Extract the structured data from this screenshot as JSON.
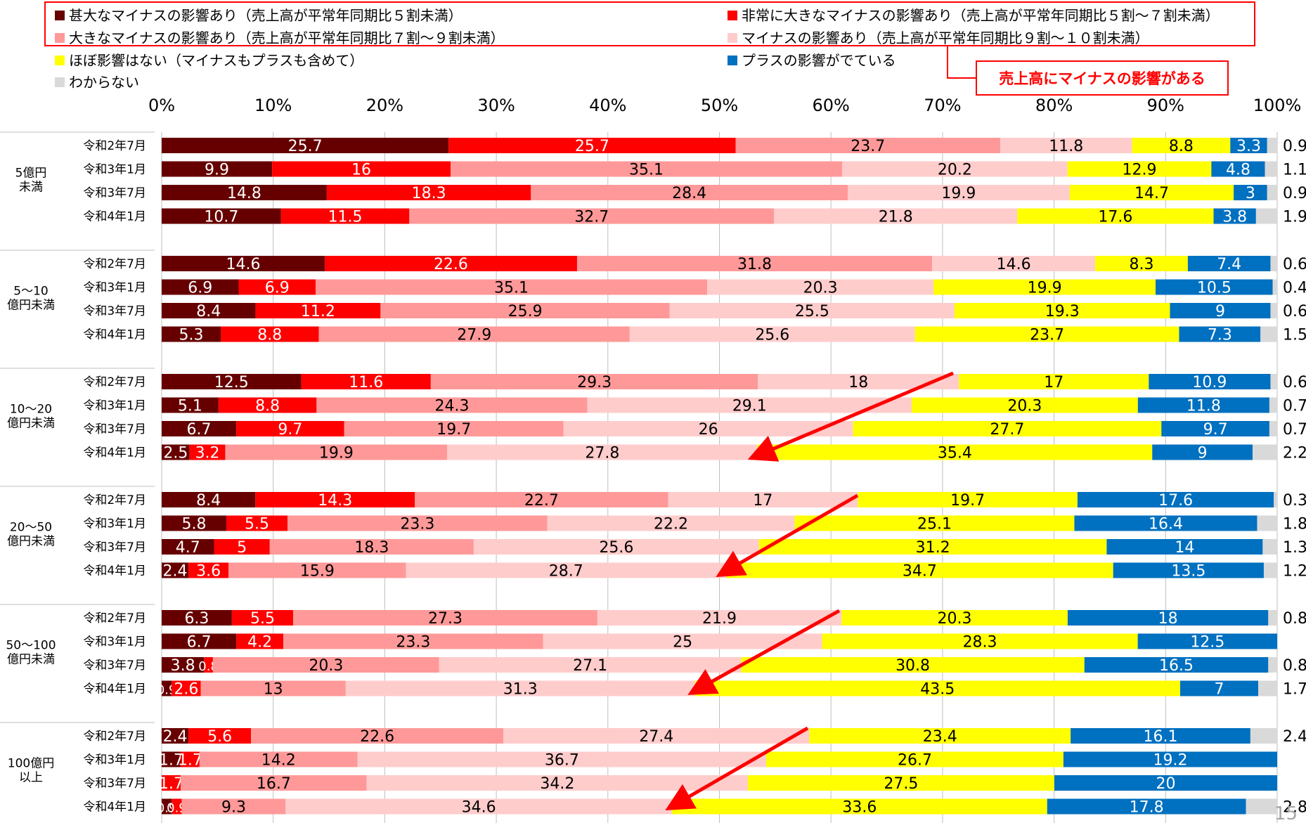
{
  "legend": {
    "items": [
      {
        "label": "甚大なマイナスの影響あり（売上高が平常年同期比５割未満）",
        "color": "#660000"
      },
      {
        "label": "非常に大きなマイナスの影響あり（売上高が平常年同期比５割〜７割未満）",
        "color": "#FF0000"
      },
      {
        "label": "大きなマイナスの影響あり（売上高が平常年同期比７割〜９割未満）",
        "color": "#FF9999"
      },
      {
        "label": "マイナスの影響あり（売上高が平常年同期比９割〜１０割未満）",
        "color": "#FFCCCC"
      },
      {
        "label": "ほぼ影響はない（マイナスもプラスも含めて）",
        "color": "#FFFF00"
      },
      {
        "label": "プラスの影響がでている",
        "color": "#0070C0"
      },
      {
        "label": "わからない",
        "color": "#D9D9D9"
      }
    ]
  },
  "callout": {
    "label": "売上高にマイナスの影響がある"
  },
  "page_number": "15",
  "chart_data": {
    "type": "bar",
    "orientation": "horizontal",
    "stacked": "percent",
    "xlim": [
      0,
      100
    ],
    "x_ticks": [
      "0%",
      "10%",
      "20%",
      "30%",
      "40%",
      "50%",
      "60%",
      "70%",
      "80%",
      "90%",
      "100%"
    ],
    "grid": true,
    "legend_position": "top",
    "groups": [
      {
        "label": [
          "5億円",
          "未満"
        ],
        "rows": [
          {
            "label": "令和2年7月",
            "values": [
              25.7,
              25.7,
              23.7,
              11.8,
              8.8,
              3.3,
              0.9
            ]
          },
          {
            "label": "令和3年1月",
            "values": [
              9.9,
              16.0,
              35.1,
              20.2,
              12.9,
              4.8,
              1.1
            ]
          },
          {
            "label": "令和3年7月",
            "values": [
              14.8,
              18.3,
              28.4,
              19.9,
              14.7,
              3.0,
              0.9
            ]
          },
          {
            "label": "令和4年1月",
            "values": [
              10.7,
              11.5,
              32.7,
              21.8,
              17.6,
              3.8,
              1.9
            ]
          }
        ]
      },
      {
        "label": [
          "5〜10",
          "億円未満"
        ],
        "rows": [
          {
            "label": "令和2年7月",
            "values": [
              14.6,
              22.6,
              31.8,
              14.6,
              8.3,
              7.4,
              0.6
            ]
          },
          {
            "label": "令和3年1月",
            "values": [
              6.9,
              6.9,
              35.1,
              20.3,
              19.9,
              10.5,
              0.4
            ]
          },
          {
            "label": "令和3年7月",
            "values": [
              8.4,
              11.2,
              25.9,
              25.5,
              19.3,
              9.0,
              0.6
            ]
          },
          {
            "label": "令和4年1月",
            "values": [
              5.3,
              8.8,
              27.9,
              25.6,
              23.7,
              7.3,
              1.5
            ]
          }
        ]
      },
      {
        "label": [
          "10〜20",
          "億円未満"
        ],
        "rows": [
          {
            "label": "令和2年7月",
            "values": [
              12.5,
              11.6,
              29.3,
              18.0,
              17.0,
              10.9,
              0.6
            ]
          },
          {
            "label": "令和3年1月",
            "values": [
              5.1,
              8.8,
              24.3,
              29.1,
              20.3,
              11.8,
              0.7
            ]
          },
          {
            "label": "令和3年7月",
            "values": [
              6.7,
              9.7,
              19.7,
              26.0,
              27.7,
              9.7,
              0.7
            ]
          },
          {
            "label": "令和4年1月",
            "values": [
              2.5,
              3.2,
              19.9,
              27.8,
              35.4,
              9,
              2.2
            ]
          }
        ]
      },
      {
        "label": [
          "20〜50",
          "億円未満"
        ],
        "rows": [
          {
            "label": "令和2年7月",
            "values": [
              8.4,
              14.3,
              22.7,
              17.0,
              19.7,
              17.6,
              0.3
            ]
          },
          {
            "label": "令和3年1月",
            "values": [
              5.8,
              5.5,
              23.3,
              22.2,
              25.1,
              16.4,
              1.8
            ]
          },
          {
            "label": "令和3年7月",
            "values": [
              4.7,
              5.0,
              18.3,
              25.6,
              31.2,
              14.0,
              1.3
            ]
          },
          {
            "label": "令和4年1月",
            "values": [
              2.4,
              3.6,
              15.9,
              28.7,
              34.7,
              13.5,
              1.2
            ]
          }
        ]
      },
      {
        "label": [
          "50〜100",
          "億円未満"
        ],
        "rows": [
          {
            "label": "令和2年7月",
            "values": [
              6.3,
              5.5,
              27.3,
              21.9,
              20.3,
              18.0,
              0.8
            ]
          },
          {
            "label": "令和3年1月",
            "values": [
              6.7,
              4.2,
              23.3,
              25.0,
              28.3,
              12.5,
              0
            ]
          },
          {
            "label": "令和3年7月",
            "values": [
              3.8,
              0.8,
              20.3,
              27.1,
              30.8,
              16.5,
              0.8
            ]
          },
          {
            "label": "令和4年1月",
            "values": [
              0.9,
              2.6,
              13,
              31.3,
              43.5,
              7,
              1.7
            ]
          }
        ]
      },
      {
        "label": [
          "100億円",
          "以上"
        ],
        "rows": [
          {
            "label": "令和2年7月",
            "values": [
              2.4,
              5.6,
              22.6,
              27.4,
              23.4,
              16.1,
              2.4
            ]
          },
          {
            "label": "令和3年1月",
            "values": [
              1.7,
              1.7,
              14.2,
              36.7,
              26.7,
              19.2,
              0
            ]
          },
          {
            "label": "令和3年7月",
            "values": [
              0,
              1.7,
              16.7,
              34.2,
              27.5,
              20.0,
              0
            ]
          },
          {
            "label": "令和4年1月",
            "values": [
              0.9,
              0.9,
              9.3,
              34.6,
              33.6,
              17.8,
              2.8
            ]
          }
        ]
      }
    ]
  }
}
